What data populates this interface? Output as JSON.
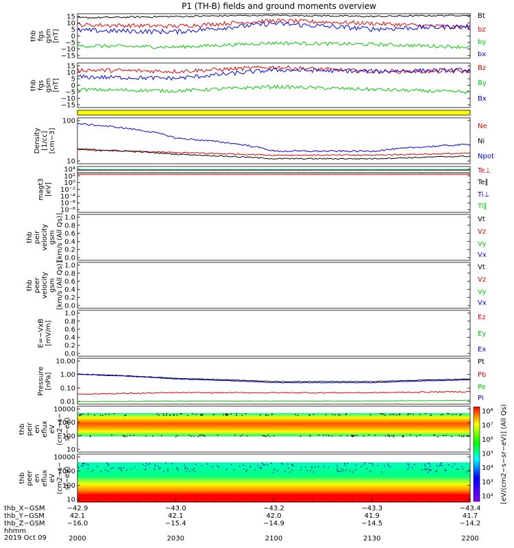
{
  "title": "P1 (TH-B) fields and ground moments overview",
  "date_label": "2019 Oct 09",
  "panels": [
    {
      "id": "fgs",
      "ylabel": [
        "thb",
        "fgs",
        "gsm",
        "[nT]"
      ],
      "ytick_labels": [
        "15",
        "10",
        "5",
        "0",
        "−5",
        "−10",
        "−15"
      ],
      "legend": [
        "Bt",
        "bz",
        "by",
        "bx"
      ],
      "legend_colors": [
        "#000000",
        "#e00000",
        "#00c800",
        "#0000e0"
      ]
    },
    {
      "id": "fgs2",
      "ylabel": [
        "thb",
        "fgs",
        "gsm",
        "[nT]"
      ],
      "ytick_labels": [
        "15",
        "10",
        "5",
        "0",
        "−5",
        "−10",
        "−15"
      ],
      "legend": [
        "Bz",
        "By",
        "Bx"
      ],
      "legend_colors": [
        "#e00000",
        "#00c800",
        "#0000e0"
      ]
    },
    {
      "id": "flag",
      "ylabel": [],
      "ytick_labels": [],
      "legend": [],
      "legend_colors": []
    },
    {
      "id": "density",
      "ylabel": [
        "Density",
        "[1/cc]",
        "[cm−3]"
      ],
      "ytick_labels": [
        "100",
        "10"
      ],
      "legend": [
        "Ne",
        "Ni",
        "Npot"
      ],
      "legend_colors": [
        "#e00000",
        "#000000",
        "#0000e0"
      ]
    },
    {
      "id": "temp",
      "ylabel": [
        "magt3",
        "[eV]"
      ],
      "ytick_labels": [
        "10⁴",
        "10²",
        "10⁰",
        "10⁻²",
        "10⁻⁴",
        "10⁻⁶",
        "10⁻⁸"
      ],
      "legend": [
        "Te⊥",
        "Te∥",
        "Ti⊥",
        "Ti∥"
      ],
      "legend_colors": [
        "#e00000",
        "#000000",
        "#0000e0",
        "#00c800"
      ]
    },
    {
      "id": "peir_v",
      "ylabel": [
        "thb",
        "peir",
        "velocity",
        "gsm",
        "[km/s (All Qs)]"
      ],
      "ytick_labels": [
        "1.0",
        "0.8",
        "0.6",
        "0.4",
        "0.2",
        "0.0"
      ],
      "legend": [
        "Vt",
        "Vz",
        "Vy",
        "Vx"
      ],
      "legend_colors": [
        "#000000",
        "#e00000",
        "#00c800",
        "#0000e0"
      ]
    },
    {
      "id": "peer_v",
      "ylabel": [
        "thb",
        "peer",
        "velocity",
        "gsm",
        "[km/s (All Qs)]"
      ],
      "ytick_labels": [
        "1.0",
        "0.8",
        "0.6",
        "0.4",
        "0.2",
        "0.0"
      ],
      "legend": [
        "Vt",
        "Vz",
        "Vy",
        "Vx"
      ],
      "legend_colors": [
        "#000000",
        "#e00000",
        "#00c800",
        "#0000e0"
      ]
    },
    {
      "id": "efield",
      "ylabel": [
        "E=−VxB",
        "[mV/m]"
      ],
      "ytick_labels": [
        "1.0",
        "0.8",
        "0.6",
        "0.4",
        "0.2",
        "0.0"
      ],
      "legend": [
        "Ez",
        "Ey",
        "Ex"
      ],
      "legend_colors": [
        "#e00000",
        "#00c800",
        "#0000e0"
      ]
    },
    {
      "id": "pressure",
      "ylabel": [
        "Pressure",
        "[nPa]"
      ],
      "ytick_labels": [
        "10.00",
        "1.00",
        "0.10",
        "0.01"
      ],
      "legend": [
        "Pt",
        "Pb",
        "Pe",
        "Pi"
      ],
      "legend_colors": [
        "#000000",
        "#e00000",
        "#00c800",
        "#0000e0"
      ]
    },
    {
      "id": "peir_spec",
      "ylabel": [
        "thb",
        "peir",
        "en",
        "eflux",
        "eV",
        "(cm2−s−",
        "sr−eV)"
      ],
      "ytick_labels": [
        "10000",
        "1000",
        "100",
        "10"
      ],
      "legend": [],
      "legend_colors": []
    },
    {
      "id": "peer_spec",
      "ylabel": [
        "thb",
        "peer",
        "en",
        "eflux",
        "eV",
        "(cm2−s−",
        "sr−eV)"
      ],
      "ytick_labels": [
        "10000",
        "1000",
        "100",
        "10"
      ],
      "legend": [],
      "legend_colors": []
    }
  ],
  "colorbar": {
    "tick_labels": [
      "10⁸",
      "10⁷",
      "10⁶",
      "10⁵",
      "10⁴",
      "10³",
      "10²"
    ],
    "label": "[eV/(cm2−s−sr−eV)] (All Qs)"
  },
  "xaxis": {
    "row_labels": [
      "thb_X−GSM",
      "thb_Y−GSM",
      "thb_Z−GSM",
      "hhmm"
    ],
    "columns": [
      {
        "x": "−42.9",
        "y": "42.1",
        "z": "−16.0",
        "hhmm": "2000"
      },
      {
        "x": "−43.0",
        "y": "42.1",
        "z": "−15.4",
        "hhmm": "2030"
      },
      {
        "x": "−43.2",
        "y": "42.0",
        "z": "−14.9",
        "hhmm": "2100"
      },
      {
        "x": "−43.3",
        "y": "41.9",
        "z": "−14.5",
        "hhmm": "2130"
      },
      {
        "x": "−43.4",
        "y": "41.7",
        "z": "−14.2",
        "hhmm": "2200"
      }
    ]
  },
  "chart_data": {
    "type": "line",
    "title": "P1 (TH-B) fields and ground moments overview",
    "x": [
      2000,
      2030,
      2100,
      2130,
      2200
    ],
    "x_tick_labels": [
      "2000",
      "2030",
      "2100",
      "2130",
      "2200"
    ],
    "panels": [
      {
        "name": "fgs_gsm_with_Bt",
        "ylim": [
          -15,
          15
        ],
        "series": [
          {
            "name": "Bt",
            "color": "#000000",
            "values": [
              13,
              14,
              15,
              14,
              15
            ]
          },
          {
            "name": "bz",
            "color": "#e00000",
            "values": [
              8,
              7,
              11,
              9,
              6
            ]
          },
          {
            "name": "by",
            "color": "#00c800",
            "values": [
              -7,
              -8,
              -5,
              -6,
              -8
            ]
          },
          {
            "name": "bx",
            "color": "#0000e0",
            "values": [
              4,
              3,
              9,
              5,
              7
            ]
          }
        ]
      },
      {
        "name": "fgs_gsm",
        "ylim": [
          -15,
          15
        ],
        "series": [
          {
            "name": "Bz",
            "color": "#e00000",
            "values": [
              11,
              10,
              13,
              10,
              10
            ]
          },
          {
            "name": "By",
            "color": "#00c800",
            "values": [
              -3,
              -4,
              -1,
              -3,
              -5
            ]
          },
          {
            "name": "Bx",
            "color": "#0000e0",
            "values": [
              6,
              5,
              11,
              10,
              11
            ]
          }
        ]
      },
      {
        "name": "density",
        "scale": "log",
        "ylim": [
          2,
          250
        ],
        "series": [
          {
            "name": "Ne",
            "color": "#e00000",
            "values": [
              8,
              6,
              4.5,
              4.5,
              5.5
            ]
          },
          {
            "name": "Ni",
            "color": "#000000",
            "values": [
              9,
              5,
              3,
              3,
              4
            ]
          },
          {
            "name": "Npot",
            "color": "#0000e0",
            "values": [
              150,
              30,
              7,
              7,
              15
            ]
          }
        ]
      },
      {
        "name": "temperature",
        "scale": "log",
        "ylim": [
          1e-09,
          10000.0
        ],
        "series": [
          {
            "name": "Te⊥",
            "color": "#e00000",
            "values": [
              100,
              100,
              100,
              100,
              100
            ]
          },
          {
            "name": "Te∥",
            "color": "#000000",
            "values": [
              300,
              300,
              300,
              300,
              300
            ]
          },
          {
            "name": "Ti⊥",
            "color": "#0000e0",
            "values": [
              2000,
              2000,
              2000,
              2000,
              2000
            ]
          },
          {
            "name": "Ti∥",
            "color": "#00c800",
            "values": [
              3000,
              3000,
              3000,
              3000,
              3000
            ]
          }
        ]
      },
      {
        "name": "pressure",
        "scale": "log",
        "ylim": [
          0.01,
          10
        ],
        "series": [
          {
            "name": "Pt",
            "color": "#000000",
            "values": [
              1.0,
              0.5,
              0.3,
              0.3,
              0.45
            ]
          },
          {
            "name": "Pb",
            "color": "#e00000",
            "values": [
              0.04,
              0.05,
              0.05,
              0.05,
              0.06
            ]
          },
          {
            "name": "Pe",
            "color": "#00c800",
            "values": [
              0.012,
              0.013,
              0.013,
              0.013,
              0.015
            ]
          },
          {
            "name": "Pi",
            "color": "#0000e0",
            "values": [
              0.95,
              0.45,
              0.25,
              0.25,
              0.4
            ]
          }
        ]
      }
    ],
    "spectrograms": [
      {
        "name": "peir_en_eflux",
        "ylim": [
          5,
          20000
        ],
        "scale": "log"
      },
      {
        "name": "peer_en_eflux",
        "ylim": [
          5,
          20000
        ],
        "scale": "log"
      }
    ],
    "colorbar_range": [
      100,
      100000000
    ]
  }
}
